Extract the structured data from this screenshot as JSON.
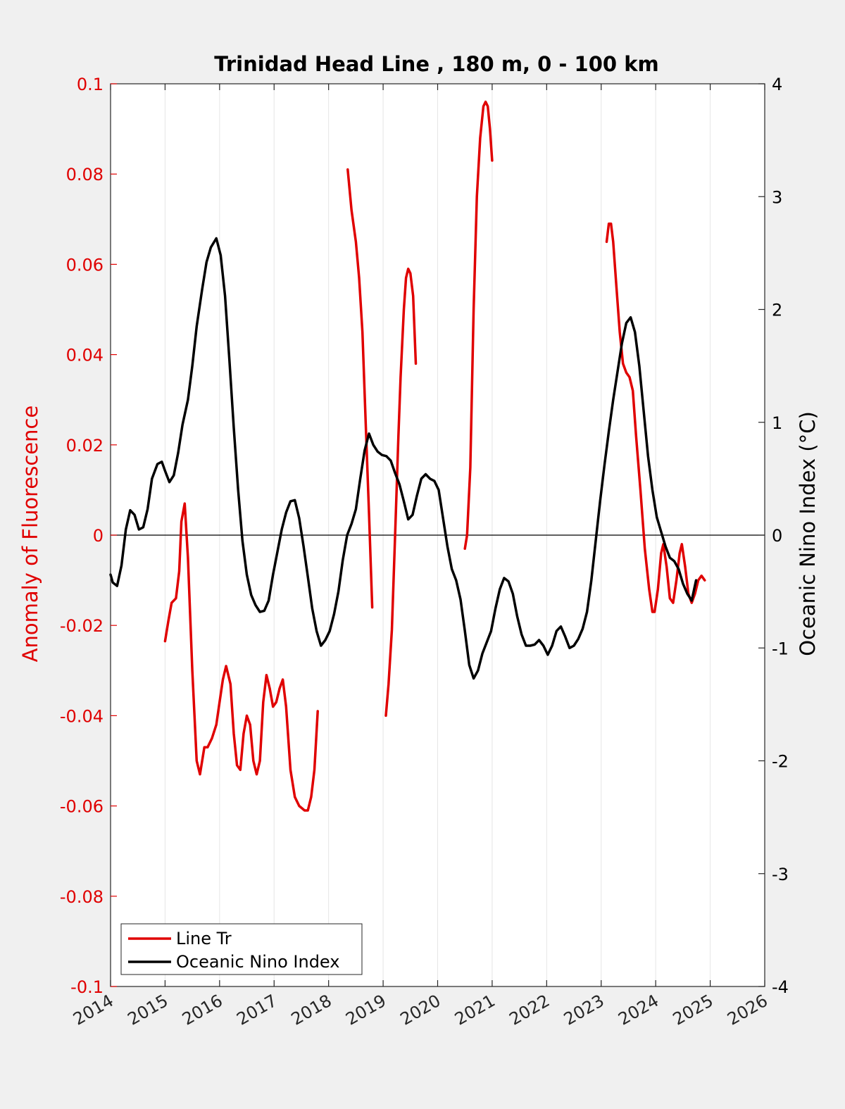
{
  "chart_data": {
    "type": "line",
    "title": "Trinidad Head Line , 180 m, 0 - 100 km",
    "xlabel": "",
    "ylabel_left": "Anomaly of Fluorescence",
    "ylabel_right": "Oceanic Nino Index (°C)",
    "xlim": [
      2014,
      2026
    ],
    "ylim_left": [
      -0.1,
      0.1
    ],
    "ylim_right": [
      -4,
      4
    ],
    "x_ticks": [
      "2014",
      "2015",
      "2016",
      "2017",
      "2018",
      "2019",
      "2020",
      "2021",
      "2022",
      "2023",
      "2024",
      "2025",
      "2026"
    ],
    "y_ticks_left": [
      "-0.1",
      "-0.08",
      "-0.06",
      "-0.04",
      "-0.02",
      "0",
      "0.02",
      "0.04",
      "0.06",
      "0.08",
      "0.1"
    ],
    "y_ticks_right": [
      "-4",
      "-3",
      "-2",
      "-1",
      "0",
      "1",
      "2",
      "3",
      "4"
    ],
    "grid": "vertical",
    "legend_position": "bottom-left",
    "colors": {
      "line_tr": "#e00000",
      "oni": "#000000"
    },
    "series": [
      {
        "name": "Line Tr",
        "axis": "left",
        "segments": [
          [
            [
              2015.0,
              -0.0235
            ],
            [
              2015.06,
              -0.019
            ],
            [
              2015.12,
              -0.015
            ],
            [
              2015.2,
              -0.014
            ],
            [
              2015.26,
              -0.008
            ],
            [
              2015.3,
              0.003
            ],
            [
              2015.36,
              0.007
            ],
            [
              2015.42,
              -0.005
            ],
            [
              2015.5,
              -0.03
            ],
            [
              2015.58,
              -0.05
            ],
            [
              2015.64,
              -0.053
            ],
            [
              2015.72,
              -0.047
            ],
            [
              2015.78,
              -0.047
            ],
            [
              2015.86,
              -0.045
            ],
            [
              2015.94,
              -0.042
            ],
            [
              2016.0,
              -0.037
            ],
            [
              2016.06,
              -0.032
            ],
            [
              2016.12,
              -0.029
            ],
            [
              2016.2,
              -0.033
            ],
            [
              2016.26,
              -0.044
            ],
            [
              2016.32,
              -0.051
            ],
            [
              2016.38,
              -0.052
            ],
            [
              2016.44,
              -0.044
            ],
            [
              2016.5,
              -0.04
            ],
            [
              2016.56,
              -0.042
            ],
            [
              2016.62,
              -0.05
            ],
            [
              2016.68,
              -0.053
            ],
            [
              2016.74,
              -0.05
            ],
            [
              2016.8,
              -0.037
            ],
            [
              2016.86,
              -0.031
            ],
            [
              2016.92,
              -0.034
            ],
            [
              2016.98,
              -0.038
            ],
            [
              2017.04,
              -0.037
            ],
            [
              2017.1,
              -0.034
            ],
            [
              2017.16,
              -0.032
            ],
            [
              2017.22,
              -0.038
            ],
            [
              2017.3,
              -0.052
            ],
            [
              2017.38,
              -0.058
            ],
            [
              2017.46,
              -0.06
            ],
            [
              2017.56,
              -0.061
            ],
            [
              2017.62,
              -0.061
            ],
            [
              2017.68,
              -0.058
            ],
            [
              2017.74,
              -0.052
            ],
            [
              2017.8,
              -0.039
            ]
          ],
          [
            [
              2018.35,
              0.081
            ],
            [
              2018.42,
              0.072
            ],
            [
              2018.5,
              0.065
            ],
            [
              2018.56,
              0.057
            ],
            [
              2018.62,
              0.045
            ],
            [
              2018.68,
              0.025
            ],
            [
              2018.74,
              0.005
            ],
            [
              2018.8,
              -0.016
            ]
          ],
          [
            [
              2019.05,
              -0.04
            ],
            [
              2019.1,
              -0.033
            ],
            [
              2019.16,
              -0.021
            ],
            [
              2019.22,
              0.0
            ],
            [
              2019.28,
              0.022
            ],
            [
              2019.32,
              0.035
            ],
            [
              2019.38,
              0.05
            ],
            [
              2019.42,
              0.057
            ],
            [
              2019.46,
              0.059
            ],
            [
              2019.5,
              0.058
            ],
            [
              2019.55,
              0.053
            ],
            [
              2019.6,
              0.038
            ]
          ],
          [
            [
              2020.5,
              -0.003
            ],
            [
              2020.54,
              0.0
            ],
            [
              2020.6,
              0.015
            ],
            [
              2020.66,
              0.05
            ],
            [
              2020.72,
              0.075
            ],
            [
              2020.78,
              0.088
            ],
            [
              2020.84,
              0.095
            ],
            [
              2020.88,
              0.096
            ],
            [
              2020.92,
              0.095
            ],
            [
              2020.96,
              0.09
            ],
            [
              2021.0,
              0.083
            ]
          ],
          [
            [
              2023.1,
              0.065
            ],
            [
              2023.14,
              0.069
            ],
            [
              2023.18,
              0.069
            ],
            [
              2023.22,
              0.065
            ],
            [
              2023.28,
              0.055
            ],
            [
              2023.34,
              0.045
            ],
            [
              2023.4,
              0.038
            ],
            [
              2023.46,
              0.036
            ],
            [
              2023.52,
              0.035
            ],
            [
              2023.58,
              0.032
            ],
            [
              2023.64,
              0.022
            ],
            [
              2023.72,
              0.01
            ],
            [
              2023.8,
              -0.003
            ],
            [
              2023.88,
              -0.012
            ],
            [
              2023.94,
              -0.017
            ],
            [
              2023.98,
              -0.017
            ],
            [
              2024.04,
              -0.012
            ],
            [
              2024.1,
              -0.004
            ],
            [
              2024.14,
              -0.002
            ],
            [
              2024.2,
              -0.007
            ],
            [
              2024.26,
              -0.014
            ],
            [
              2024.32,
              -0.015
            ],
            [
              2024.38,
              -0.01
            ],
            [
              2024.44,
              -0.004
            ],
            [
              2024.48,
              -0.002
            ],
            [
              2024.54,
              -0.007
            ],
            [
              2024.6,
              -0.013
            ],
            [
              2024.66,
              -0.015
            ],
            [
              2024.72,
              -0.013
            ],
            [
              2024.78,
              -0.01
            ],
            [
              2024.84,
              -0.009
            ],
            [
              2024.9,
              -0.01
            ]
          ]
        ]
      },
      {
        "name": "Oceanic Nino Index",
        "axis": "right",
        "segments": [
          [
            [
              2014.0,
              -0.35
            ],
            [
              2014.04,
              -0.42
            ],
            [
              2014.12,
              -0.45
            ],
            [
              2014.2,
              -0.27
            ],
            [
              2014.28,
              0.05
            ],
            [
              2014.36,
              0.22
            ],
            [
              2014.44,
              0.18
            ],
            [
              2014.52,
              0.05
            ],
            [
              2014.6,
              0.07
            ],
            [
              2014.68,
              0.23
            ],
            [
              2014.76,
              0.5
            ],
            [
              2014.86,
              0.63
            ],
            [
              2014.94,
              0.65
            ],
            [
              2015.0,
              0.57
            ],
            [
              2015.08,
              0.47
            ],
            [
              2015.16,
              0.53
            ],
            [
              2015.24,
              0.73
            ],
            [
              2015.32,
              0.98
            ],
            [
              2015.42,
              1.2
            ],
            [
              2015.5,
              1.5
            ],
            [
              2015.58,
              1.85
            ],
            [
              2015.68,
              2.18
            ],
            [
              2015.76,
              2.42
            ],
            [
              2015.84,
              2.55
            ],
            [
              2015.94,
              2.63
            ],
            [
              2016.02,
              2.48
            ],
            [
              2016.1,
              2.12
            ],
            [
              2016.18,
              1.55
            ],
            [
              2016.26,
              0.95
            ],
            [
              2016.34,
              0.4
            ],
            [
              2016.42,
              -0.05
            ],
            [
              2016.5,
              -0.35
            ],
            [
              2016.58,
              -0.53
            ],
            [
              2016.66,
              -0.62
            ],
            [
              2016.74,
              -0.68
            ],
            [
              2016.82,
              -0.67
            ],
            [
              2016.9,
              -0.58
            ],
            [
              2016.98,
              -0.35
            ],
            [
              2017.06,
              -0.15
            ],
            [
              2017.14,
              0.05
            ],
            [
              2017.22,
              0.2
            ],
            [
              2017.3,
              0.3
            ],
            [
              2017.38,
              0.31
            ],
            [
              2017.46,
              0.15
            ],
            [
              2017.54,
              -0.1
            ],
            [
              2017.62,
              -0.37
            ],
            [
              2017.7,
              -0.65
            ],
            [
              2017.78,
              -0.85
            ],
            [
              2017.86,
              -0.98
            ],
            [
              2017.94,
              -0.93
            ],
            [
              2018.02,
              -0.85
            ],
            [
              2018.1,
              -0.7
            ],
            [
              2018.18,
              -0.5
            ],
            [
              2018.26,
              -0.22
            ],
            [
              2018.34,
              0.0
            ],
            [
              2018.42,
              0.1
            ],
            [
              2018.5,
              0.23
            ],
            [
              2018.58,
              0.5
            ],
            [
              2018.66,
              0.75
            ],
            [
              2018.74,
              0.9
            ],
            [
              2018.82,
              0.8
            ],
            [
              2018.9,
              0.74
            ],
            [
              2018.98,
              0.71
            ],
            [
              2019.06,
              0.7
            ],
            [
              2019.14,
              0.66
            ],
            [
              2019.22,
              0.55
            ],
            [
              2019.3,
              0.45
            ],
            [
              2019.38,
              0.3
            ],
            [
              2019.46,
              0.14
            ],
            [
              2019.54,
              0.18
            ],
            [
              2019.62,
              0.35
            ],
            [
              2019.7,
              0.5
            ],
            [
              2019.78,
              0.54
            ],
            [
              2019.86,
              0.5
            ],
            [
              2019.94,
              0.48
            ],
            [
              2020.02,
              0.4
            ],
            [
              2020.1,
              0.15
            ],
            [
              2020.18,
              -0.1
            ],
            [
              2020.26,
              -0.3
            ],
            [
              2020.34,
              -0.4
            ],
            [
              2020.42,
              -0.57
            ],
            [
              2020.5,
              -0.85
            ],
            [
              2020.58,
              -1.15
            ],
            [
              2020.66,
              -1.27
            ],
            [
              2020.74,
              -1.2
            ],
            [
              2020.82,
              -1.05
            ],
            [
              2020.9,
              -0.95
            ],
            [
              2020.98,
              -0.85
            ],
            [
              2021.06,
              -0.65
            ],
            [
              2021.14,
              -0.48
            ],
            [
              2021.22,
              -0.38
            ],
            [
              2021.3,
              -0.41
            ],
            [
              2021.38,
              -0.52
            ],
            [
              2021.46,
              -0.72
            ],
            [
              2021.54,
              -0.88
            ],
            [
              2021.62,
              -0.98
            ],
            [
              2021.7,
              -0.98
            ],
            [
              2021.78,
              -0.97
            ],
            [
              2021.86,
              -0.93
            ],
            [
              2021.94,
              -0.98
            ],
            [
              2022.02,
              -1.06
            ],
            [
              2022.1,
              -0.98
            ],
            [
              2022.18,
              -0.85
            ],
            [
              2022.26,
              -0.81
            ],
            [
              2022.34,
              -0.9
            ],
            [
              2022.42,
              -1.0
            ],
            [
              2022.5,
              -0.98
            ],
            [
              2022.58,
              -0.92
            ],
            [
              2022.66,
              -0.83
            ],
            [
              2022.74,
              -0.68
            ],
            [
              2022.82,
              -0.4
            ],
            [
              2022.9,
              -0.05
            ],
            [
              2022.98,
              0.3
            ],
            [
              2023.06,
              0.62
            ],
            [
              2023.14,
              0.92
            ],
            [
              2023.22,
              1.2
            ],
            [
              2023.3,
              1.45
            ],
            [
              2023.38,
              1.7
            ],
            [
              2023.46,
              1.88
            ],
            [
              2023.54,
              1.93
            ],
            [
              2023.62,
              1.8
            ],
            [
              2023.7,
              1.5
            ],
            [
              2023.78,
              1.1
            ],
            [
              2023.86,
              0.7
            ],
            [
              2023.94,
              0.4
            ],
            [
              2024.02,
              0.16
            ],
            [
              2024.1,
              0.03
            ],
            [
              2024.18,
              -0.1
            ],
            [
              2024.26,
              -0.2
            ],
            [
              2024.34,
              -0.23
            ],
            [
              2024.42,
              -0.3
            ],
            [
              2024.5,
              -0.43
            ],
            [
              2024.58,
              -0.52
            ],
            [
              2024.66,
              -0.58
            ],
            [
              2024.74,
              -0.4
            ]
          ]
        ]
      }
    ]
  }
}
